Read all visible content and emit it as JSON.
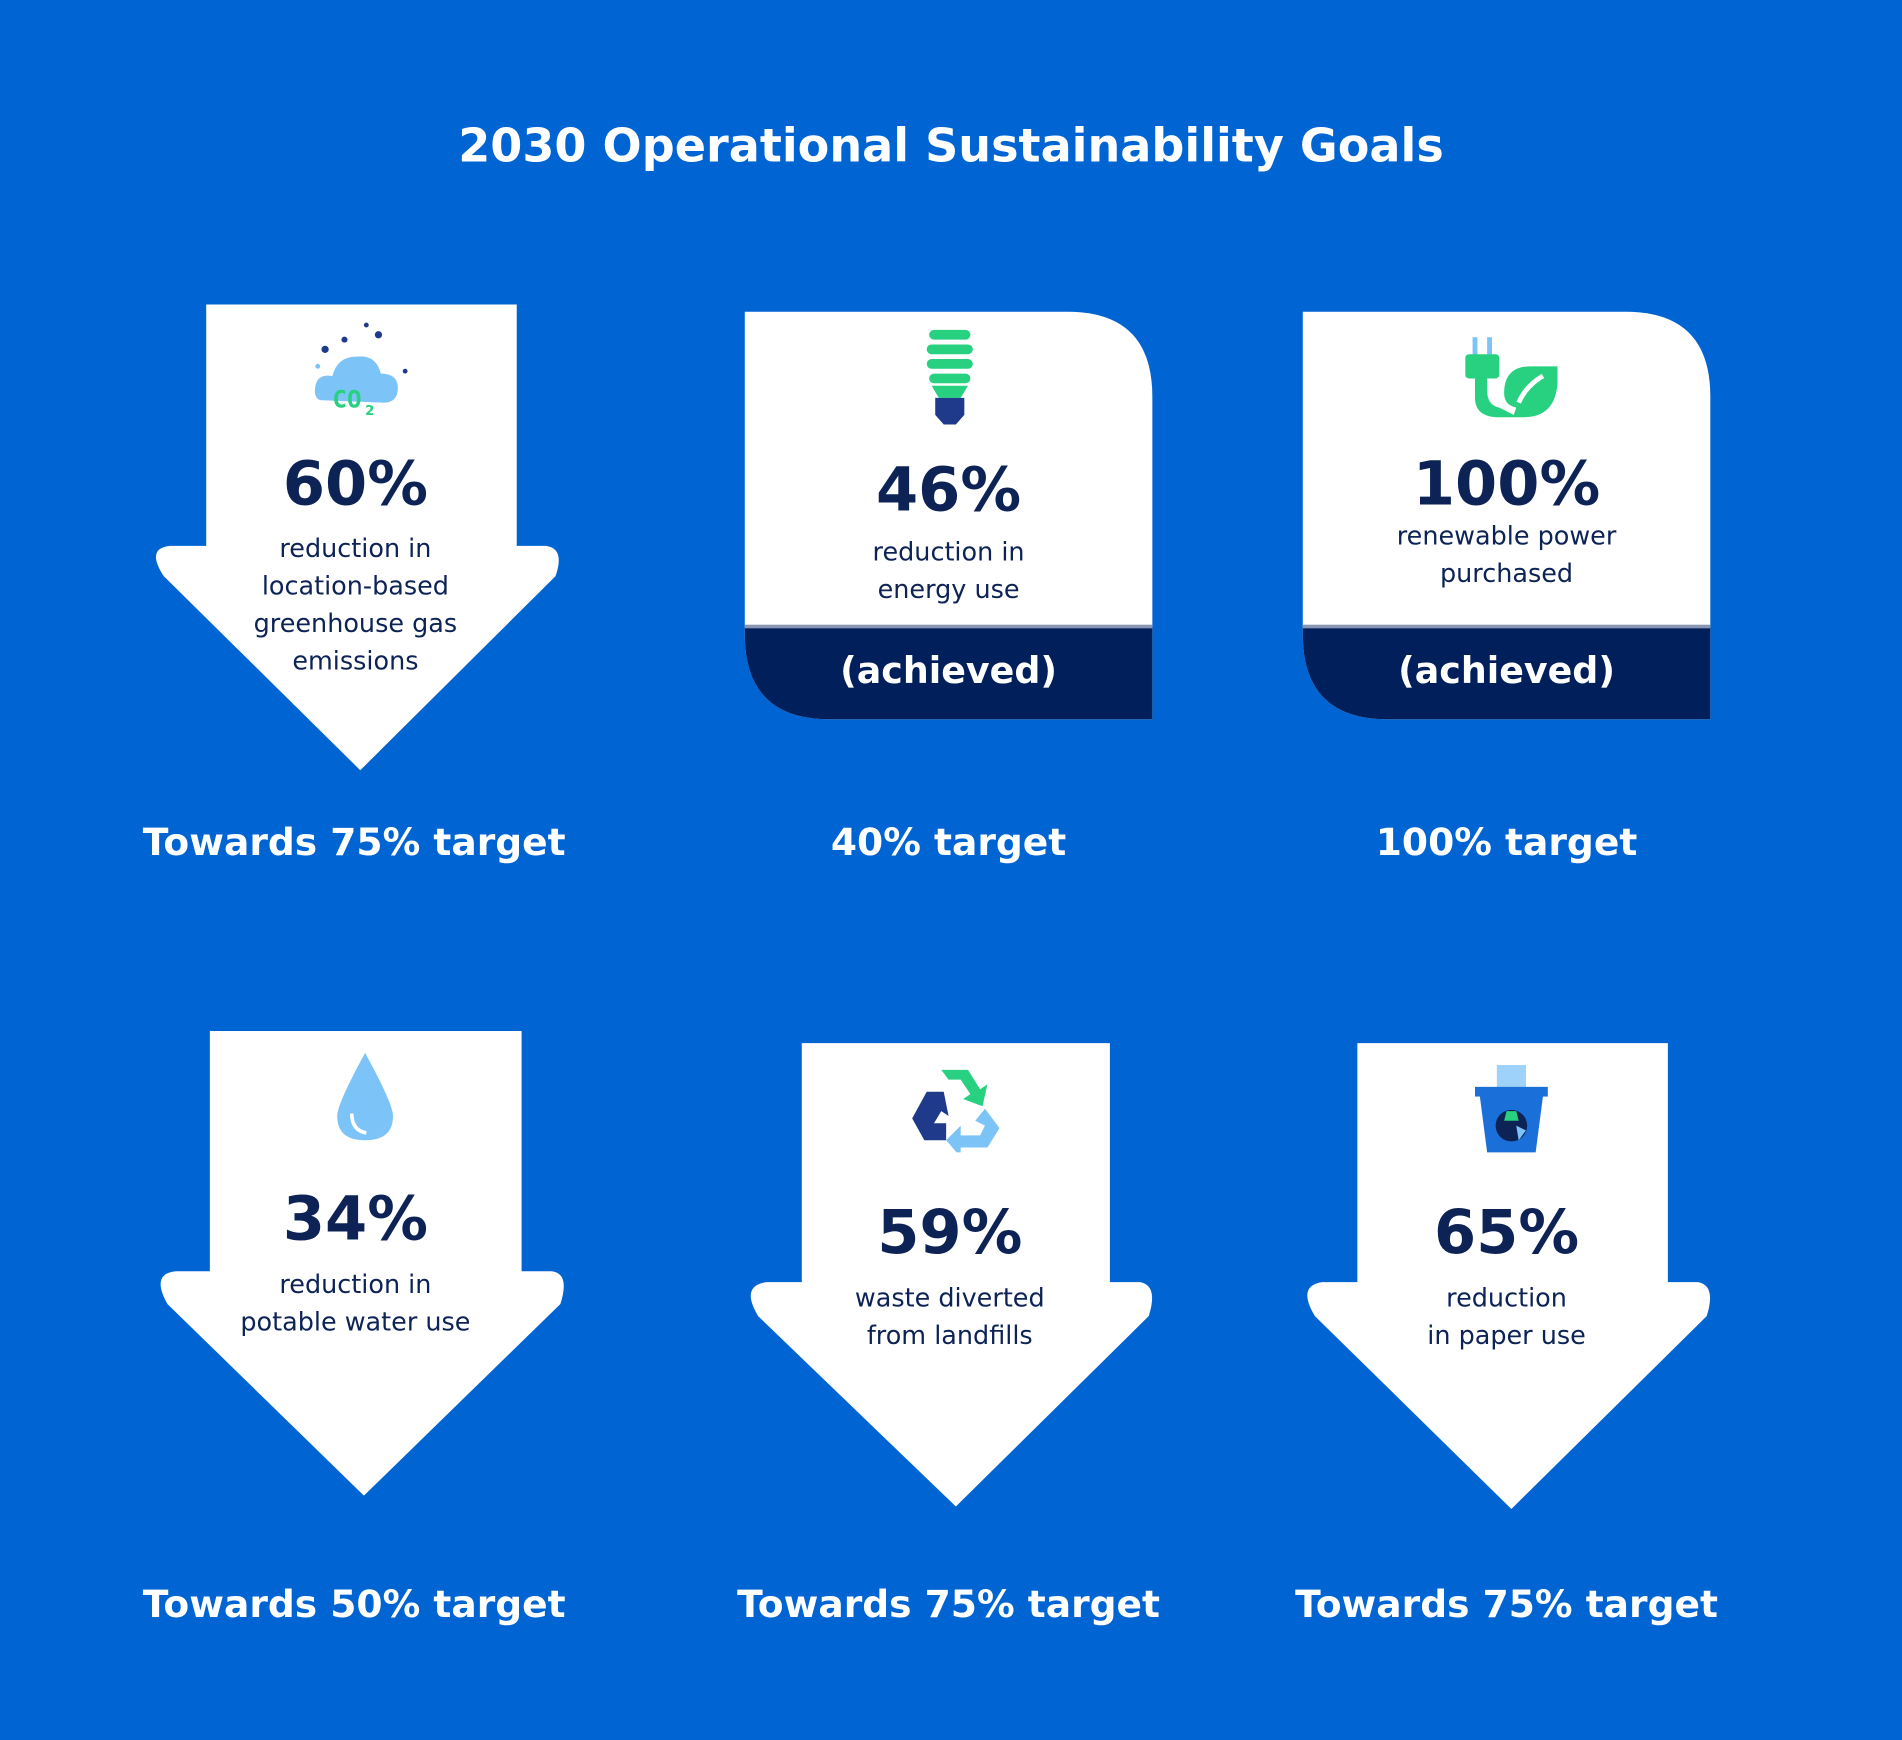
{
  "title": "2030 Operational Sustainability Goals",
  "colors": {
    "background": "#0064d2",
    "card": "#ffffff",
    "navy": "#0d2356",
    "band": "#001f5b",
    "green": "#27d17f",
    "light_blue": "#7cc4f8"
  },
  "goals": [
    {
      "icon": "co2-cloud-icon",
      "value": "60%",
      "desc1": "reduction in",
      "desc2": "location-based",
      "desc3": "greenhouse gas",
      "desc4": "emissions",
      "target": "Towards 75% target"
    },
    {
      "icon": "lightbulb-icon",
      "value": "46%",
      "desc1": "reduction in",
      "desc2": "energy use",
      "status": "(achieved)",
      "target": "40% target"
    },
    {
      "icon": "plug-leaf-icon",
      "value": "100%",
      "desc1": "renewable power",
      "desc2": "purchased",
      "status": "(achieved)",
      "target": "100% target"
    },
    {
      "icon": "water-drop-icon",
      "value": "34%",
      "desc1": "reduction in",
      "desc2": "potable water use",
      "target": "Towards 50% target"
    },
    {
      "icon": "recycle-icon",
      "value": "59%",
      "desc1": "waste diverted",
      "desc2": "from landfills",
      "target": "Towards 75% target"
    },
    {
      "icon": "paper-bin-icon",
      "value": "65%",
      "desc1": "reduction",
      "desc2": "in paper use",
      "target": "Towards 75% target"
    }
  ]
}
